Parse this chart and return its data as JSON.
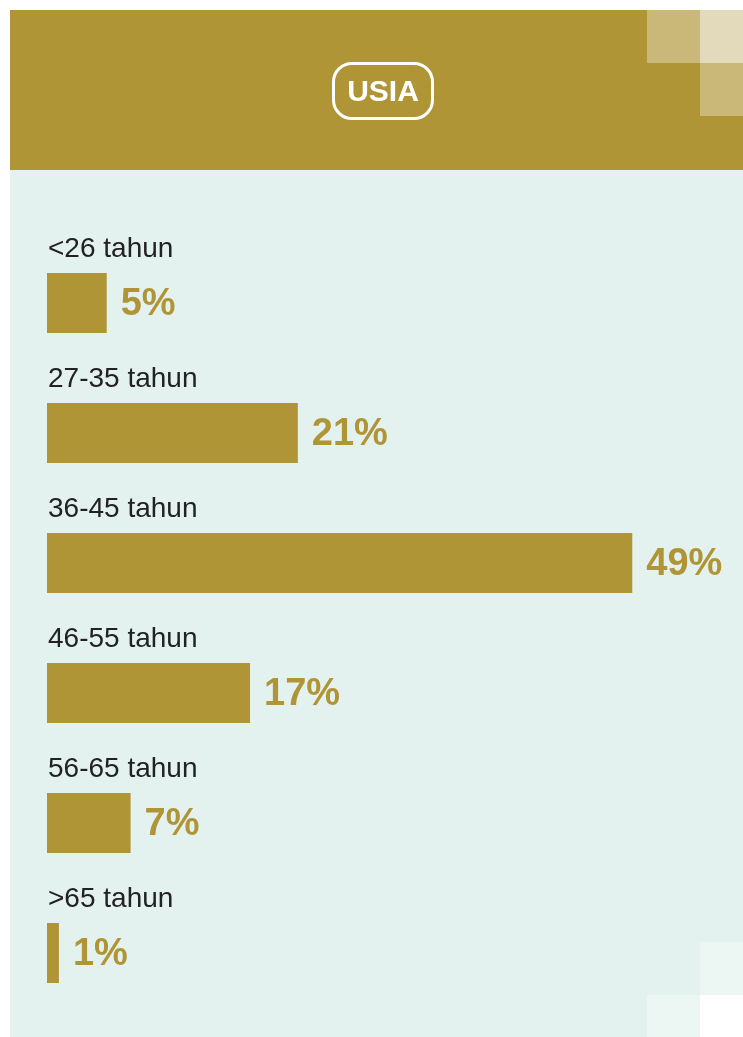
{
  "chart_data": {
    "type": "bar",
    "orientation": "horizontal",
    "title": "USIA",
    "categories": [
      "<26 tahun",
      "27-35 tahun",
      "36-45 tahun",
      "46-55 tahun",
      "56-65 tahun",
      ">65 tahun"
    ],
    "values": [
      5,
      21,
      49,
      17,
      7,
      1
    ],
    "value_labels": [
      "5%",
      "21%",
      "49%",
      "17%",
      "7%",
      "1%"
    ],
    "color": "#b09537"
  }
}
